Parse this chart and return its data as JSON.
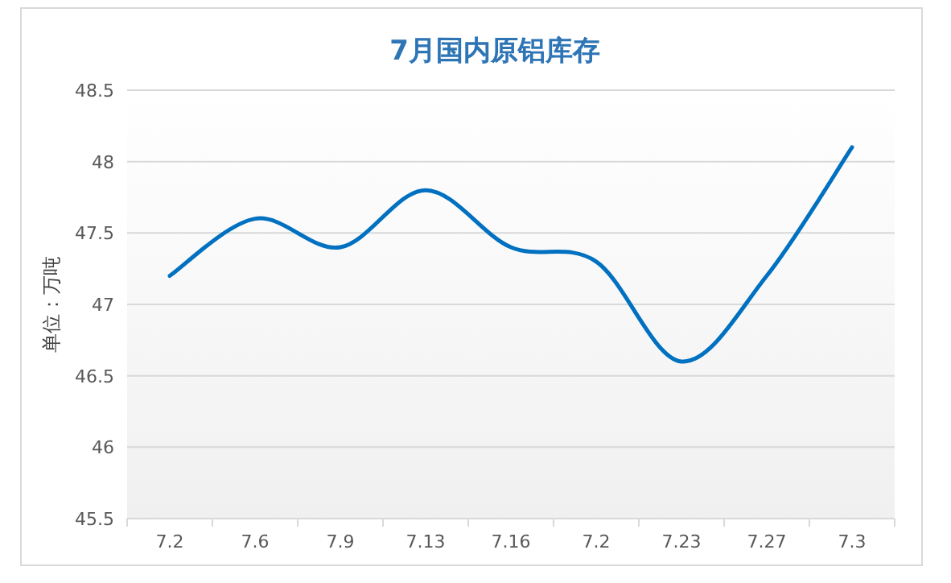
{
  "chart_data": {
    "type": "line",
    "title": "7月国内原铝库存",
    "ylabel": "单位：万吨",
    "categories": [
      "7.2",
      "7.6",
      "7.9",
      "7.13",
      "7.16",
      "7.2",
      "7.23",
      "7.27",
      "7.3"
    ],
    "series": [
      {
        "color": "#0070c0",
        "values": [
          47.2,
          47.6,
          47.4,
          47.8,
          47.4,
          47.3,
          46.6,
          47.2,
          48.1
        ]
      }
    ],
    "ylim": [
      45.5,
      48.5
    ],
    "yticks": [
      45.5,
      46,
      46.5,
      47,
      47.5,
      48,
      48.5
    ],
    "grid": "y",
    "marker": "none",
    "line_style": "solid"
  }
}
